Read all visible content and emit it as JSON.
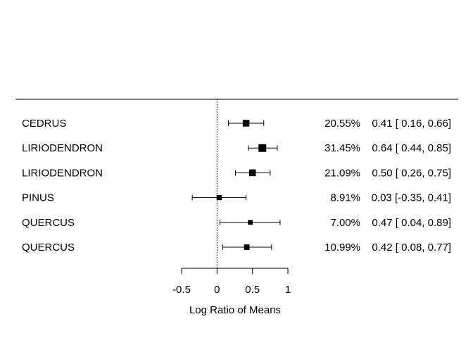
{
  "chart_data": {
    "type": "forest",
    "title": "",
    "xlabel": "Log Ratio of Means",
    "xlim": [
      -0.5,
      1
    ],
    "xticks": [
      -0.5,
      0,
      0.5,
      1
    ],
    "xtick_labels": [
      "-0.5",
      "0",
      "0.5",
      "1"
    ],
    "reference_line": 0,
    "studies": [
      {
        "label": "CEDRUS",
        "estimate": 0.41,
        "lower": 0.16,
        "upper": 0.66,
        "weight": 20.55,
        "weight_label": "20.55%",
        "ci_label": "0.41 [ 0.16, 0.66]"
      },
      {
        "label": "LIRIODENDRON",
        "estimate": 0.64,
        "lower": 0.44,
        "upper": 0.85,
        "weight": 31.45,
        "weight_label": "31.45%",
        "ci_label": "0.64 [ 0.44, 0.85]"
      },
      {
        "label": "LIRIODENDRON",
        "estimate": 0.5,
        "lower": 0.26,
        "upper": 0.75,
        "weight": 21.09,
        "weight_label": "21.09%",
        "ci_label": "0.50 [ 0.26, 0.75]"
      },
      {
        "label": "PINUS",
        "estimate": 0.03,
        "lower": -0.35,
        "upper": 0.41,
        "weight": 8.91,
        "weight_label": "8.91%",
        "ci_label": "0.03 [-0.35, 0.41]"
      },
      {
        "label": "QUERCUS",
        "estimate": 0.47,
        "lower": 0.04,
        "upper": 0.89,
        "weight": 7.0,
        "weight_label": "7.00%",
        "ci_label": "0.47 [ 0.04, 0.89]"
      },
      {
        "label": "QUERCUS",
        "estimate": 0.42,
        "lower": 0.08,
        "upper": 0.77,
        "weight": 10.99,
        "weight_label": "10.99%",
        "ci_label": "0.42 [ 0.08, 0.77]"
      }
    ]
  }
}
